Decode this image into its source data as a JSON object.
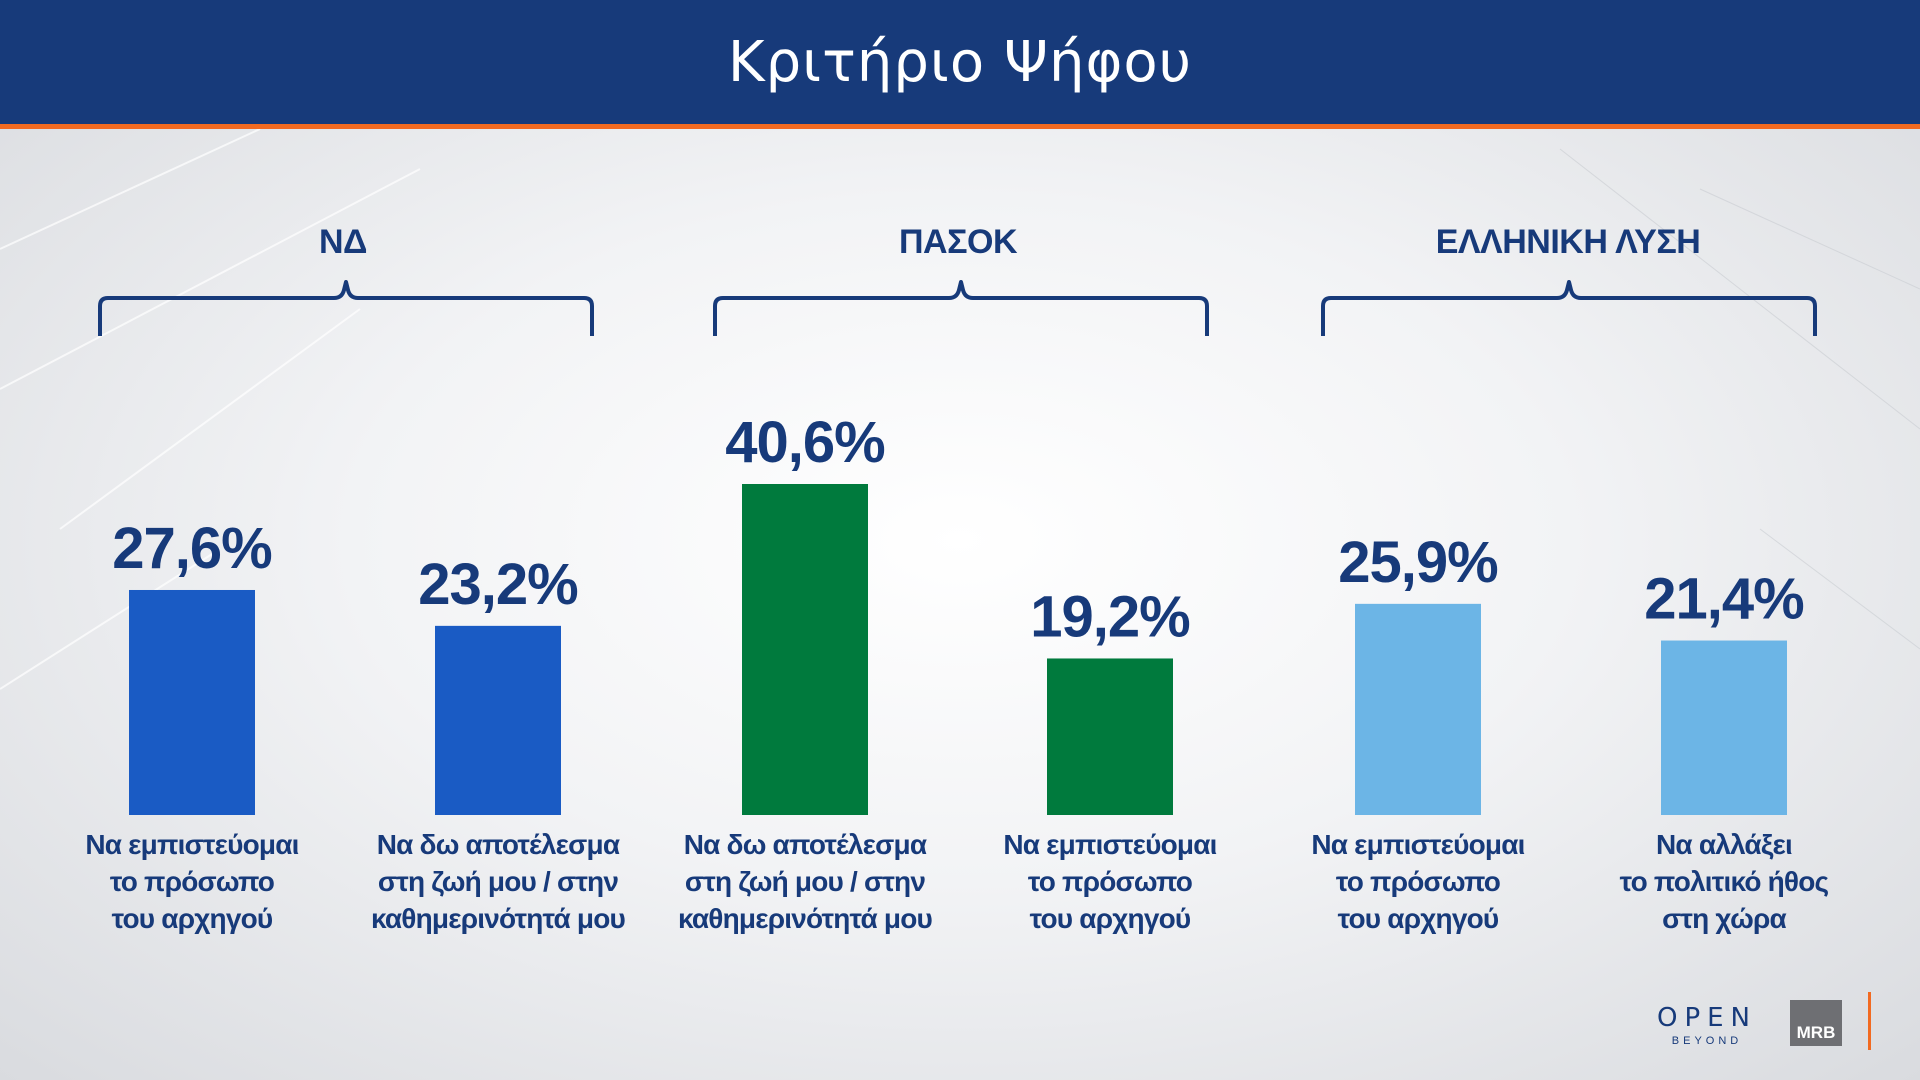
{
  "header": {
    "title": "Κριτήριο Ψήφου"
  },
  "groups": [
    {
      "name": "ΝΔ"
    },
    {
      "name": "ΠΑΣΟΚ"
    },
    {
      "name": "ΕΛΛΗΝΙΚΗ ΛΥΣΗ"
    }
  ],
  "colors": {
    "nd": "#1a5bc4",
    "pasok": "#007a3d",
    "ellisi": "#6cb5e6",
    "header": "#173a7a",
    "accent": "#f26a21",
    "text": "#173a7a"
  },
  "chart_data": {
    "type": "bar",
    "title": "Κριτήριο Ψήφου",
    "xlabel": "",
    "ylabel": "",
    "ylim": [
      0,
      50
    ],
    "grid": false,
    "categories": [
      "Να εμπιστεύομαι\nτο πρόσωπο\nτου αρχηγού",
      "Να δω αποτέλεσμα\nστη ζωή μου / στην\nκαθημερινότητά μου",
      "Να δω αποτέλεσμα\nστη ζωή μου / στην\nκαθημερινότητά μου",
      "Να εμπιστεύομαι\nτο πρόσωπο\nτου αρχηγού",
      "Να εμπιστεύομαι\nτο πρόσωπο\nτου αρχηγού",
      "Να αλλάξει\nτο πολιτικό ήθος\nστη χώρα"
    ],
    "values": [
      27.6,
      23.2,
      40.6,
      19.2,
      25.9,
      21.4
    ],
    "value_labels": [
      "27,6%",
      "23,2%",
      "40,6%",
      "19,2%",
      "25,9%",
      "21,4%"
    ],
    "bar_groups": [
      "ΝΔ",
      "ΝΔ",
      "ΠΑΣΟΚ",
      "ΠΑΣΟΚ",
      "ΕΛΛΗΝΙΚΗ ΛΥΣΗ",
      "ΕΛΛΗΝΙΚΗ ΛΥΣΗ"
    ],
    "bar_colors": [
      "#1a5bc4",
      "#1a5bc4",
      "#007a3d",
      "#007a3d",
      "#6cb5e6",
      "#6cb5e6"
    ]
  },
  "logos": {
    "open": "OPEN",
    "open_sub": "BEYOND",
    "mrb": "MRB"
  }
}
